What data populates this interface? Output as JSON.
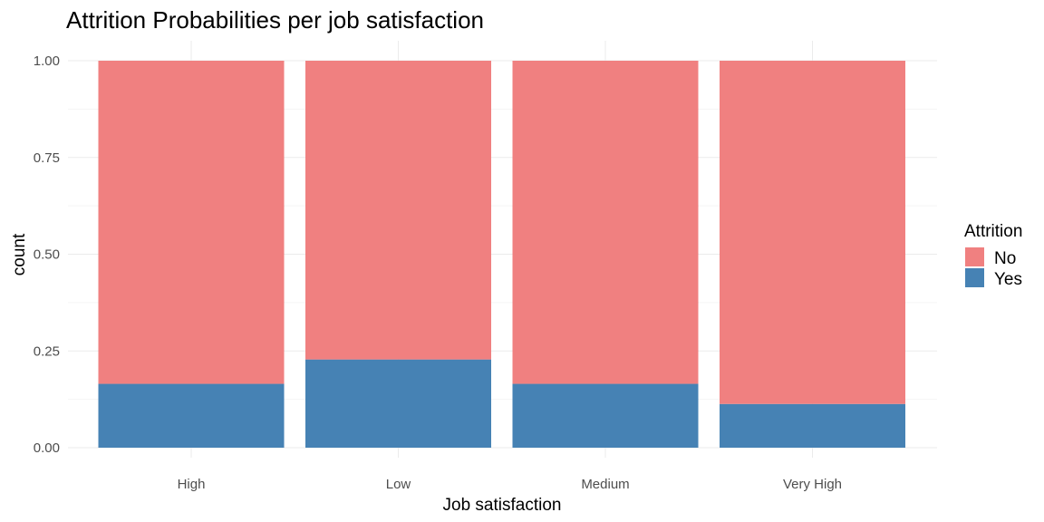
{
  "chart_data": {
    "type": "bar",
    "stacked": true,
    "title": "Attrition Probabilities per job satisfaction",
    "xlabel": "Job satisfaction",
    "ylabel": "count",
    "categories": [
      "High",
      "Low",
      "Medium",
      "Very High"
    ],
    "series": [
      {
        "name": "No",
        "color": "#f08080",
        "values": [
          0.835,
          0.772,
          0.835,
          0.887
        ]
      },
      {
        "name": "Yes",
        "color": "#4682b4",
        "values": [
          0.165,
          0.228,
          0.165,
          0.113
        ]
      }
    ],
    "ylim": [
      0,
      1
    ],
    "yticks": [
      "0.00",
      "0.25",
      "0.50",
      "0.75",
      "1.00"
    ],
    "ytick_values": [
      0,
      0.25,
      0.5,
      0.75,
      1.0
    ],
    "grid": true,
    "legend": {
      "title": "Attrition",
      "placement": "right",
      "entries": [
        "No",
        "Yes"
      ]
    },
    "colors": {
      "grid_major": "#ebebeb",
      "grid_minor": "#f5f5f5",
      "tick_text": "#4d4d4d"
    }
  }
}
